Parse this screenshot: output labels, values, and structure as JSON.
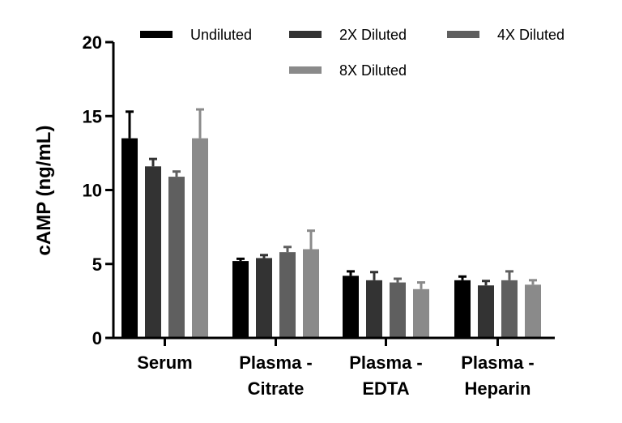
{
  "chart_data": {
    "type": "bar",
    "categories": [
      [
        "Serum"
      ],
      [
        "Plasma -",
        "Citrate"
      ],
      [
        "Plasma -",
        "EDTA"
      ],
      [
        "Plasma -",
        "Heparin"
      ]
    ],
    "series": [
      {
        "name": "Undiluted",
        "color": "#000000",
        "values": [
          13.5,
          5.2,
          4.2,
          3.9
        ],
        "errors": [
          1.8,
          0.15,
          0.3,
          0.25
        ]
      },
      {
        "name": "2X Diluted",
        "color": "#333333",
        "values": [
          11.6,
          5.4,
          3.9,
          3.55
        ],
        "errors": [
          0.5,
          0.2,
          0.55,
          0.3
        ]
      },
      {
        "name": "4X Diluted",
        "color": "#5f5f5f",
        "values": [
          10.9,
          5.8,
          3.75,
          3.9
        ],
        "errors": [
          0.35,
          0.35,
          0.25,
          0.6
        ]
      },
      {
        "name": "8X Diluted",
        "color": "#8a8a8a",
        "values": [
          13.5,
          6.0,
          3.3,
          3.6
        ],
        "errors": [
          1.95,
          1.25,
          0.45,
          0.3
        ]
      }
    ],
    "ylabel": "cAMP (ng/mL)",
    "xlabel": "",
    "ylim": [
      0,
      20
    ],
    "yticks": [
      0,
      5,
      10,
      15,
      20
    ],
    "grid": false,
    "legend_position": "top"
  }
}
